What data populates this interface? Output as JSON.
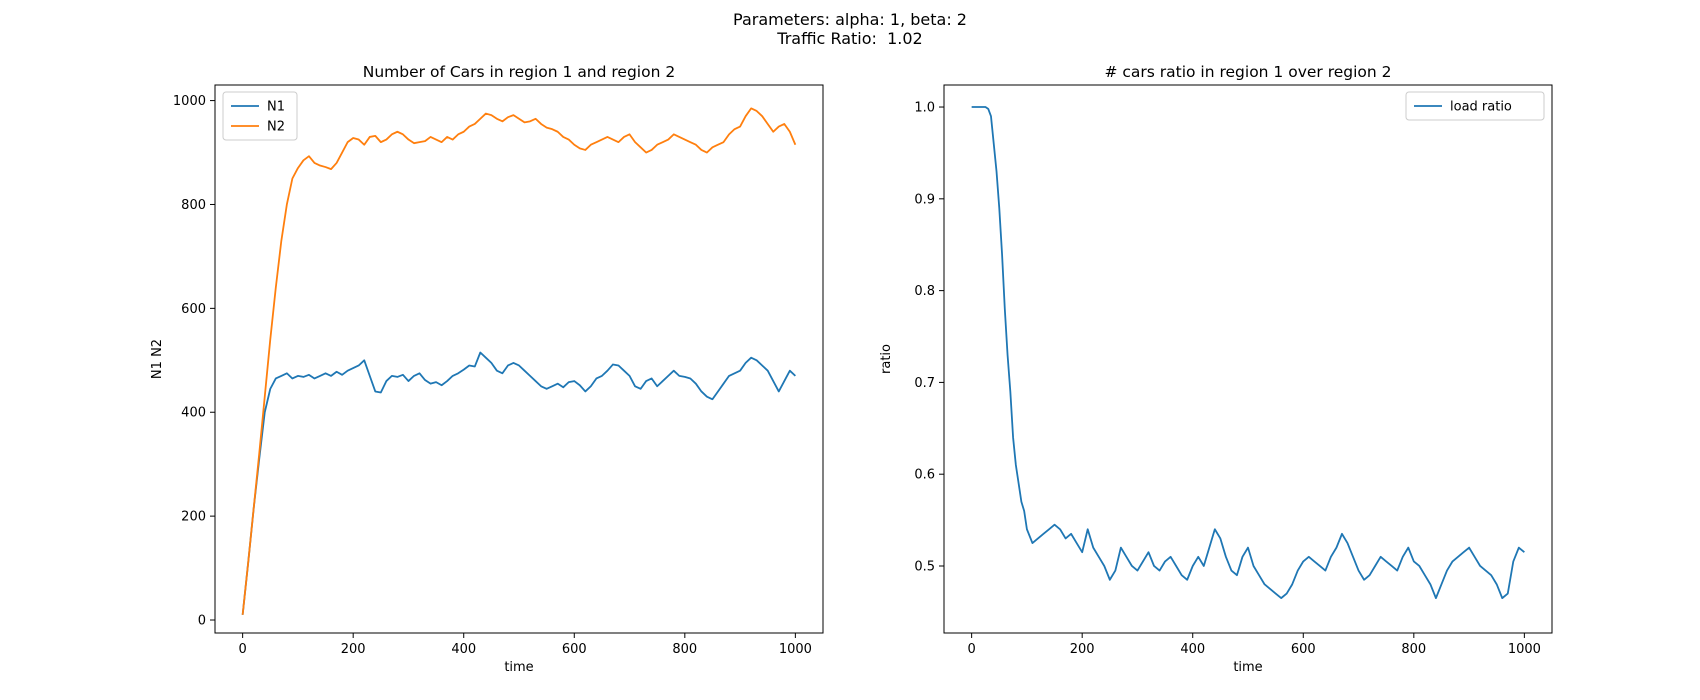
{
  "figure": {
    "suptitle_line1": "Parameters: alpha: 1, beta: 2",
    "suptitle_line2": "Traffic Ratio:  1.02"
  },
  "chart_data": [
    {
      "type": "line",
      "title": "Number of Cars in region 1 and region 2",
      "xlabel": "time",
      "ylabel": "N1 N2",
      "xlim": [
        -50,
        1050
      ],
      "ylim": [
        -25,
        1030
      ],
      "xticks": [
        0,
        200,
        400,
        600,
        800,
        1000
      ],
      "yticks": [
        0,
        200,
        400,
        600,
        800,
        1000
      ],
      "grid": false,
      "legend_position": "upper-left",
      "series": [
        {
          "name": "N1",
          "color": "#1f77b4",
          "x": [
            0,
            10,
            20,
            30,
            40,
            50,
            60,
            70,
            80,
            90,
            100,
            110,
            120,
            130,
            140,
            150,
            160,
            170,
            180,
            190,
            200,
            210,
            220,
            230,
            240,
            250,
            260,
            270,
            280,
            290,
            300,
            310,
            320,
            330,
            340,
            350,
            360,
            370,
            380,
            390,
            400,
            410,
            420,
            430,
            440,
            450,
            460,
            470,
            480,
            490,
            500,
            510,
            520,
            530,
            540,
            550,
            560,
            570,
            580,
            590,
            600,
            610,
            620,
            630,
            640,
            650,
            660,
            670,
            680,
            690,
            700,
            710,
            720,
            730,
            740,
            750,
            760,
            770,
            780,
            790,
            800,
            810,
            820,
            830,
            840,
            850,
            860,
            870,
            880,
            890,
            900,
            910,
            920,
            930,
            940,
            950,
            960,
            970,
            980,
            990,
            1000
          ],
          "y": [
            10,
            110,
            215,
            310,
            400,
            445,
            465,
            470,
            475,
            465,
            470,
            468,
            472,
            465,
            470,
            475,
            470,
            478,
            472,
            480,
            485,
            490,
            500,
            470,
            440,
            438,
            460,
            470,
            468,
            472,
            460,
            470,
            475,
            462,
            455,
            458,
            452,
            460,
            470,
            475,
            482,
            490,
            488,
            515,
            505,
            495,
            480,
            475,
            490,
            495,
            490,
            480,
            470,
            460,
            450,
            445,
            450,
            455,
            448,
            458,
            460,
            452,
            440,
            450,
            465,
            470,
            480,
            492,
            490,
            480,
            470,
            450,
            445,
            460,
            465,
            450,
            460,
            470,
            480,
            470,
            468,
            465,
            455,
            440,
            430,
            425,
            440,
            455,
            470,
            475,
            480,
            495,
            505,
            500,
            490,
            480,
            460,
            440,
            460,
            480,
            470
          ]
        },
        {
          "name": "N2",
          "color": "#ff7f0e",
          "x": [
            0,
            10,
            20,
            30,
            40,
            50,
            60,
            70,
            80,
            90,
            100,
            110,
            120,
            130,
            140,
            150,
            160,
            170,
            180,
            190,
            200,
            210,
            220,
            230,
            240,
            250,
            260,
            270,
            280,
            290,
            300,
            310,
            320,
            330,
            340,
            350,
            360,
            370,
            380,
            390,
            400,
            410,
            420,
            430,
            440,
            450,
            460,
            470,
            480,
            490,
            500,
            510,
            520,
            530,
            540,
            550,
            560,
            570,
            580,
            590,
            600,
            610,
            620,
            630,
            640,
            650,
            660,
            670,
            680,
            690,
            700,
            710,
            720,
            730,
            740,
            750,
            760,
            770,
            780,
            790,
            800,
            810,
            820,
            830,
            840,
            850,
            860,
            870,
            880,
            890,
            900,
            910,
            920,
            930,
            940,
            950,
            960,
            970,
            980,
            990,
            1000
          ],
          "y": [
            10,
            110,
            215,
            320,
            430,
            540,
            640,
            730,
            800,
            850,
            870,
            885,
            893,
            880,
            875,
            872,
            868,
            880,
            900,
            920,
            928,
            925,
            915,
            930,
            932,
            920,
            925,
            935,
            940,
            935,
            925,
            918,
            920,
            922,
            930,
            925,
            920,
            930,
            925,
            935,
            940,
            950,
            955,
            965,
            975,
            972,
            965,
            960,
            968,
            972,
            965,
            958,
            960,
            965,
            955,
            948,
            945,
            940,
            930,
            925,
            915,
            908,
            905,
            915,
            920,
            925,
            930,
            925,
            920,
            930,
            935,
            920,
            910,
            900,
            905,
            915,
            920,
            925,
            935,
            930,
            925,
            920,
            915,
            905,
            900,
            910,
            915,
            920,
            935,
            945,
            950,
            970,
            985,
            980,
            970,
            955,
            940,
            950,
            955,
            940,
            915
          ]
        }
      ]
    },
    {
      "type": "line",
      "title": "# cars ratio in region 1 over region 2",
      "xlabel": "time",
      "ylabel": "ratio",
      "xlim": [
        -50,
        1050
      ],
      "ylim": [
        0.427,
        1.024
      ],
      "xticks": [
        0,
        200,
        400,
        600,
        800,
        1000
      ],
      "yticks": [
        0.5,
        0.6,
        0.7,
        0.8,
        0.9,
        1.0
      ],
      "grid": false,
      "legend_position": "upper-right",
      "series": [
        {
          "name": "load ratio",
          "color": "#1f77b4",
          "x": [
            0,
            10,
            20,
            25,
            30,
            35,
            40,
            45,
            50,
            55,
            60,
            65,
            70,
            75,
            80,
            85,
            90,
            95,
            100,
            110,
            120,
            130,
            140,
            150,
            160,
            170,
            180,
            190,
            200,
            210,
            220,
            230,
            240,
            250,
            260,
            270,
            280,
            290,
            300,
            310,
            320,
            330,
            340,
            350,
            360,
            370,
            380,
            390,
            400,
            410,
            420,
            430,
            440,
            450,
            460,
            470,
            480,
            490,
            500,
            510,
            520,
            530,
            540,
            550,
            560,
            570,
            580,
            590,
            600,
            610,
            620,
            630,
            640,
            650,
            660,
            670,
            680,
            690,
            700,
            710,
            720,
            730,
            740,
            750,
            760,
            770,
            780,
            790,
            800,
            810,
            820,
            830,
            840,
            850,
            860,
            870,
            880,
            890,
            900,
            910,
            920,
            930,
            940,
            950,
            960,
            970,
            980,
            990,
            1000
          ],
          "y": [
            1.0,
            1.0,
            1.0,
            1.0,
            0.998,
            0.99,
            0.96,
            0.93,
            0.89,
            0.84,
            0.78,
            0.73,
            0.69,
            0.64,
            0.61,
            0.59,
            0.57,
            0.56,
            0.54,
            0.525,
            0.53,
            0.535,
            0.54,
            0.545,
            0.54,
            0.53,
            0.535,
            0.525,
            0.515,
            0.54,
            0.52,
            0.51,
            0.5,
            0.485,
            0.495,
            0.52,
            0.51,
            0.5,
            0.495,
            0.505,
            0.515,
            0.5,
            0.495,
            0.505,
            0.51,
            0.5,
            0.49,
            0.485,
            0.5,
            0.51,
            0.5,
            0.52,
            0.54,
            0.53,
            0.51,
            0.495,
            0.49,
            0.51,
            0.52,
            0.5,
            0.49,
            0.48,
            0.475,
            0.47,
            0.465,
            0.47,
            0.48,
            0.495,
            0.505,
            0.51,
            0.505,
            0.5,
            0.495,
            0.51,
            0.52,
            0.535,
            0.525,
            0.51,
            0.495,
            0.485,
            0.49,
            0.5,
            0.51,
            0.505,
            0.5,
            0.495,
            0.51,
            0.52,
            0.505,
            0.5,
            0.49,
            0.48,
            0.465,
            0.48,
            0.495,
            0.505,
            0.51,
            0.515,
            0.52,
            0.51,
            0.5,
            0.495,
            0.49,
            0.48,
            0.465,
            0.47,
            0.505,
            0.52,
            0.515
          ]
        }
      ]
    }
  ]
}
